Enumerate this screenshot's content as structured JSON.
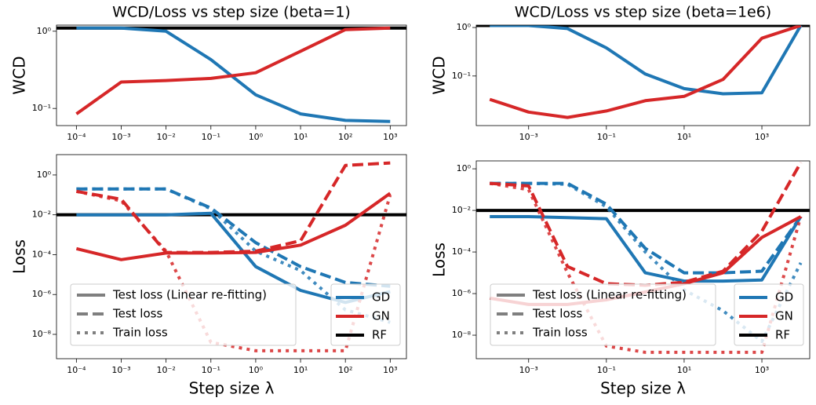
{
  "chart_data": [
    {
      "type": "line",
      "title": "WCD/Loss vs step size (beta=1)",
      "ylabel": "WCD",
      "log_x": true,
      "log_y": true,
      "x": [
        0.0001,
        0.001,
        0.01,
        0.1,
        1,
        10,
        100,
        1000
      ],
      "xlim": [
        3.6e-05,
        2300
      ],
      "ylim": [
        0.06,
        1.2
      ],
      "xticks": [
        {
          "value": 0.0001,
          "label": "10⁻⁴"
        },
        {
          "value": 0.001,
          "label": "10⁻³"
        },
        {
          "value": 0.01,
          "label": "10⁻²"
        },
        {
          "value": 0.1,
          "label": "10⁻¹"
        },
        {
          "value": 1,
          "label": "10⁰"
        },
        {
          "value": 10,
          "label": "10¹"
        },
        {
          "value": 100,
          "label": "10²"
        },
        {
          "value": 1000,
          "label": "10³"
        }
      ],
      "yticks": [
        {
          "value": 1,
          "label": "10⁰"
        },
        {
          "value": 0.1,
          "label": "10⁻¹"
        }
      ],
      "reference": {
        "value": 1.1,
        "color": "#000000"
      },
      "series": [
        {
          "name": "GD",
          "color": "#1f77b4",
          "values": [
            1.1,
            1.1,
            1.0,
            0.43,
            0.15,
            0.085,
            0.07,
            0.068
          ]
        },
        {
          "name": "GN",
          "color": "#d62728",
          "values": [
            0.085,
            0.22,
            0.23,
            0.245,
            0.29,
            0.55,
            1.05,
            1.1
          ]
        }
      ]
    },
    {
      "type": "line",
      "title": "WCD/Loss vs step size (beta=1e6)",
      "ylabel": "WCD",
      "log_x": true,
      "log_y": true,
      "x": [
        0.0001,
        0.001,
        0.01,
        0.1,
        1,
        10,
        100,
        1000,
        10000
      ],
      "xlim": [
        4.5e-05,
        17000
      ],
      "ylim": [
        0.0095,
        1.12
      ],
      "xticks": [
        {
          "value": 0.001,
          "label": "10⁻³"
        },
        {
          "value": 0.1,
          "label": "10⁻¹"
        },
        {
          "value": 10,
          "label": "10¹"
        },
        {
          "value": 1000,
          "label": "10³"
        }
      ],
      "yticks": [
        {
          "value": 1,
          "label": "10⁰"
        },
        {
          "value": 0.1,
          "label": "10⁻¹"
        }
      ],
      "reference": {
        "value": 1.1,
        "color": "#000000"
      },
      "series": [
        {
          "name": "GD",
          "color": "#1f77b4",
          "values": [
            1.1,
            1.1,
            0.95,
            0.38,
            0.11,
            0.055,
            0.043,
            0.045,
            1.1
          ]
        },
        {
          "name": "GN",
          "color": "#d62728",
          "values": [
            0.033,
            0.018,
            0.014,
            0.019,
            0.031,
            0.038,
            0.085,
            0.6,
            1.1
          ]
        }
      ]
    },
    {
      "type": "loss",
      "ylabel": "Loss",
      "xlabel": "Step size λ",
      "log_x": true,
      "log_y": true,
      "x": [
        0.0001,
        0.001,
        0.01,
        0.1,
        1,
        10,
        100,
        1000
      ],
      "xlim": [
        3.6e-05,
        2300
      ],
      "ylim": [
        6e-10,
        10.5
      ],
      "xticks": [
        {
          "value": 0.0001,
          "label": "10⁻⁴"
        },
        {
          "value": 0.001,
          "label": "10⁻³"
        },
        {
          "value": 0.01,
          "label": "10⁻²"
        },
        {
          "value": 0.1,
          "label": "10⁻¹"
        },
        {
          "value": 1,
          "label": "10⁰"
        },
        {
          "value": 10,
          "label": "10¹"
        },
        {
          "value": 100,
          "label": "10²"
        },
        {
          "value": 1000,
          "label": "10³"
        }
      ],
      "yticks": [
        {
          "value": 1,
          "label": "10⁰"
        },
        {
          "value": 0.01,
          "label": "10⁻²"
        },
        {
          "value": 0.0001,
          "label": "10⁻⁴"
        },
        {
          "value": 1e-06,
          "label": "10⁻⁶"
        },
        {
          "value": 1e-08,
          "label": "10⁻⁸"
        }
      ],
      "style_legend": [
        "Test loss (Linear re-fitting)",
        "Test loss",
        "Train loss"
      ],
      "reference": {
        "name": "RF",
        "value": 0.01,
        "color": "#000000"
      },
      "series": [
        {
          "name": "GD",
          "color": "#1f77b4",
          "values": [
            0.01,
            0.01,
            0.01,
            0.012,
            2.5e-05,
            1.6e-06,
            4e-07,
            1.4e-06
          ],
          "test_values": [
            0.2,
            0.2,
            0.2,
            0.022,
            0.0004,
            2.5e-05,
            4e-06,
            2.6e-06
          ],
          "train_values": [
            0.2,
            0.2,
            0.2,
            0.02,
            0.00015,
            1.6e-05,
            1.7e-07,
            4e-08
          ]
        },
        {
          "name": "GN",
          "color": "#d62728",
          "values": [
            0.0002,
            5.6e-05,
            0.00012,
            0.00012,
            0.00013,
            0.0003,
            0.003,
            0.12
          ],
          "test_values": [
            0.15,
            0.06,
            0.00013,
            0.00013,
            0.00015,
            0.0005,
            3,
            4
          ],
          "train_values": [
            0.15,
            0.05,
            0.00015,
            4e-09,
            1.5e-09,
            1.5e-09,
            1.5e-09,
            0.1
          ]
        }
      ]
    },
    {
      "type": "loss",
      "ylabel": "Loss",
      "xlabel": "Step size λ",
      "log_x": true,
      "log_y": true,
      "x": [
        0.0001,
        0.001,
        0.01,
        0.1,
        1,
        10,
        100,
        1000,
        10000
      ],
      "xlim": [
        4.5e-05,
        17000
      ],
      "ylim": [
        7.4e-10,
        2.4
      ],
      "xticks": [
        {
          "value": 0.001,
          "label": "10⁻³"
        },
        {
          "value": 0.1,
          "label": "10⁻¹"
        },
        {
          "value": 10,
          "label": "10¹"
        },
        {
          "value": 1000,
          "label": "10³"
        }
      ],
      "yticks": [
        {
          "value": 1,
          "label": "10⁰"
        },
        {
          "value": 0.01,
          "label": "10⁻²"
        },
        {
          "value": 0.0001,
          "label": "10⁻⁴"
        },
        {
          "value": 1e-06,
          "label": "10⁻⁶"
        },
        {
          "value": 1e-08,
          "label": "10⁻⁸"
        }
      ],
      "style_legend": [
        "Test loss (Linear re-fitting)",
        "Test loss",
        "Train loss"
      ],
      "reference": {
        "name": "RF",
        "value": 0.01,
        "color": "#000000"
      },
      "series": [
        {
          "name": "GD",
          "color": "#1f77b4",
          "values": [
            0.005,
            0.005,
            0.0045,
            0.004,
            1e-05,
            4e-06,
            4e-06,
            4.5e-06,
            0.005
          ],
          "test_values": [
            0.2,
            0.2,
            0.2,
            0.02,
            0.00015,
            1e-05,
            1e-05,
            1.2e-05,
            0.005
          ],
          "train_values": [
            0.2,
            0.2,
            0.18,
            0.015,
            0.0001,
            1.5e-06,
            1.5e-07,
            5e-09,
            3e-05
          ]
        },
        {
          "name": "GN",
          "color": "#d62728",
          "values": [
            6e-07,
            3e-07,
            3e-07,
            5e-07,
            1.2e-06,
            3e-06,
            1e-05,
            0.0005,
            0.005
          ],
          "test_values": [
            0.2,
            0.15,
            2e-05,
            3e-06,
            2.5e-06,
            3.5e-06,
            1.2e-05,
            0.001,
            2
          ],
          "train_values": [
            0.2,
            0.1,
            1e-05,
            3e-09,
            1.5e-09,
            1.5e-09,
            1.5e-09,
            1.5e-09,
            0.005
          ]
        }
      ]
    }
  ]
}
